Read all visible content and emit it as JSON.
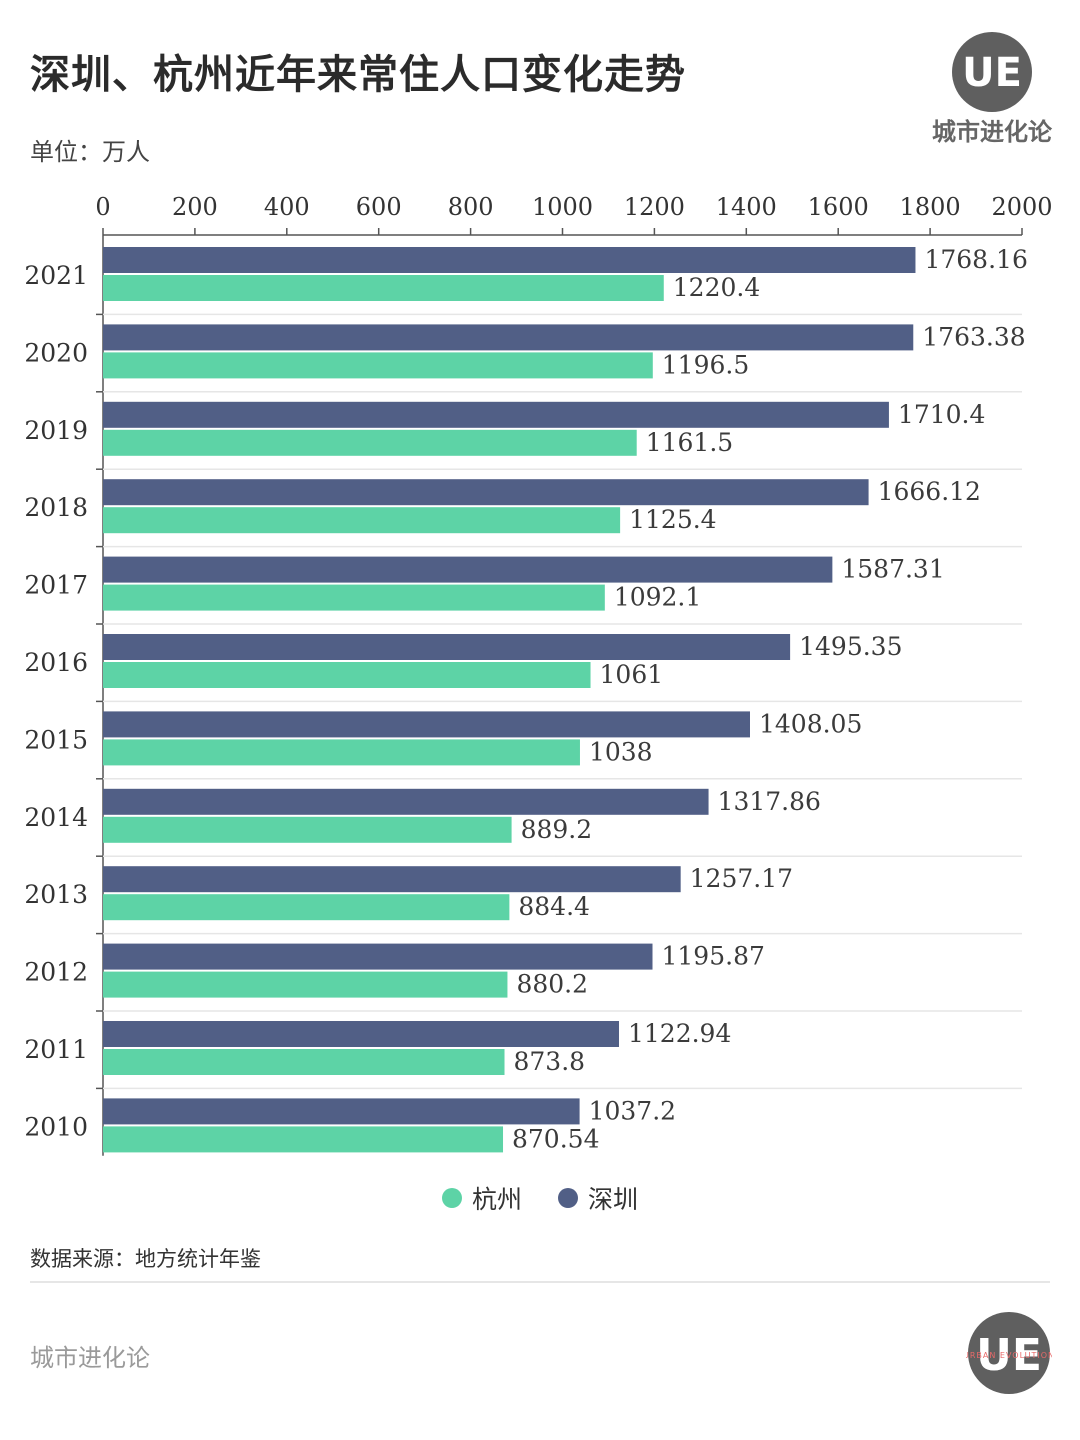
{
  "header": {
    "title": "深圳、杭州近年来常住人口变化走势",
    "unit": "单位：万人"
  },
  "brand": {
    "logo_letters": "UE",
    "name": "城市进化论",
    "logo_small_text": "URBAN EVOLUTION",
    "footer_name": "城市进化论"
  },
  "source": "数据来源：地方统计年鉴",
  "colors": {
    "shenzhen": "#515f86",
    "hangzhou": "#5dd3a6",
    "grid": "#e6e6e6",
    "axis": "#555555"
  },
  "chart_data": {
    "type": "bar",
    "orientation": "horizontal",
    "title": "深圳、杭州近年来常住人口变化走势",
    "unit": "万人",
    "xlim": [
      0,
      2000
    ],
    "xticks": [
      0,
      200,
      400,
      600,
      800,
      1000,
      1200,
      1400,
      1600,
      1800,
      2000
    ],
    "categories": [
      "2021",
      "2020",
      "2019",
      "2018",
      "2017",
      "2016",
      "2015",
      "2014",
      "2013",
      "2012",
      "2011",
      "2010"
    ],
    "series": [
      {
        "name": "深圳",
        "color": "#515f86",
        "values": [
          1768.16,
          1763.38,
          1710.4,
          1666.12,
          1587.31,
          1495.35,
          1408.05,
          1317.86,
          1257.17,
          1195.87,
          1122.94,
          1037.2
        ],
        "labels": [
          "1768.16",
          "1763.38",
          "1710.4",
          "1666.12",
          "1587.31",
          "1495.35",
          "1408.05",
          "1317.86",
          "1257.17",
          "1195.87",
          "1122.94",
          "1037.2"
        ]
      },
      {
        "name": "杭州",
        "color": "#5dd3a6",
        "values": [
          1220.4,
          1196.5,
          1161.5,
          1125.4,
          1092.1,
          1061,
          1038,
          889.2,
          884.4,
          880.2,
          873.8,
          870.54
        ],
        "labels": [
          "1220.4",
          "1196.5",
          "1161.5",
          "1125.4",
          "1092.1",
          "1061",
          "1038",
          "889.2",
          "884.4",
          "880.2",
          "873.8",
          "870.54"
        ]
      }
    ],
    "legend": [
      {
        "name": "杭州",
        "color": "#5dd3a6"
      },
      {
        "name": "深圳",
        "color": "#515f86"
      }
    ],
    "legend_position": "bottom-center"
  }
}
